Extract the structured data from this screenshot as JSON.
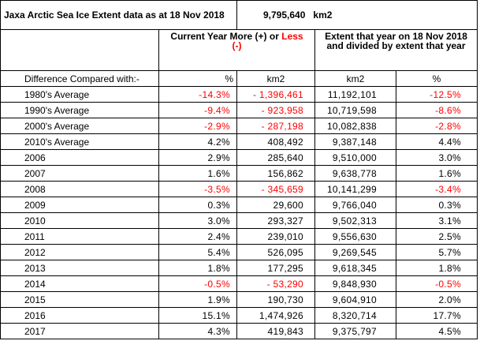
{
  "chart_data": {
    "type": "table",
    "title": "Jaxa Arctic Sea Ice Extent data as at 18 Nov 2018",
    "current_value": "9,795,640",
    "current_unit": "km2",
    "header": {
      "diff_prefix": "Current Year More (+) or ",
      "diff_less": "Less",
      "diff_paren": "(-)",
      "extent_heading": "Extent that year on 18 Nov 2018 and divided by extent that year",
      "row_label": "Difference Compared with:-",
      "col_pct": "%",
      "col_km2": "km2",
      "col_km2_b": "km2",
      "col_pct_b": "%"
    },
    "columns": [
      "Difference Compared with:-",
      "%",
      "km2",
      "km2",
      "%"
    ],
    "rows": [
      {
        "label": "1980's Average",
        "diff_pct": "-14.3%",
        "diff_km2": "- 1,396,461",
        "extent": "11,192,101",
        "ratio_pct": "-12.5%",
        "negative": true
      },
      {
        "label": "1990's Average",
        "diff_pct": "-9.4%",
        "diff_km2": "- 923,958",
        "extent": "10,719,598",
        "ratio_pct": "-8.6%",
        "negative": true
      },
      {
        "label": "2000's Average",
        "diff_pct": "-2.9%",
        "diff_km2": "- 287,198",
        "extent": "10,082,838",
        "ratio_pct": "-2.8%",
        "negative": true
      },
      {
        "label": "2010's Average",
        "diff_pct": "4.2%",
        "diff_km2": "408,492",
        "extent": "9,387,148",
        "ratio_pct": "4.4%",
        "negative": false
      },
      {
        "label": "2006",
        "diff_pct": "2.9%",
        "diff_km2": "285,640",
        "extent": "9,510,000",
        "ratio_pct": "3.0%",
        "negative": false
      },
      {
        "label": "2007",
        "diff_pct": "1.6%",
        "diff_km2": "156,862",
        "extent": "9,638,778",
        "ratio_pct": "1.6%",
        "negative": false
      },
      {
        "label": "2008",
        "diff_pct": "-3.5%",
        "diff_km2": "- 345,659",
        "extent": "10,141,299",
        "ratio_pct": "-3.4%",
        "negative": true
      },
      {
        "label": "2009",
        "diff_pct": "0.3%",
        "diff_km2": "29,600",
        "extent": "9,766,040",
        "ratio_pct": "0.3%",
        "negative": false
      },
      {
        "label": "2010",
        "diff_pct": "3.0%",
        "diff_km2": "293,327",
        "extent": "9,502,313",
        "ratio_pct": "3.1%",
        "negative": false
      },
      {
        "label": "2011",
        "diff_pct": "2.4%",
        "diff_km2": "239,010",
        "extent": "9,556,630",
        "ratio_pct": "2.5%",
        "negative": false
      },
      {
        "label": "2012",
        "diff_pct": "5.4%",
        "diff_km2": "526,095",
        "extent": "9,269,545",
        "ratio_pct": "5.7%",
        "negative": false
      },
      {
        "label": "2013",
        "diff_pct": "1.8%",
        "diff_km2": "177,295",
        "extent": "9,618,345",
        "ratio_pct": "1.8%",
        "negative": false
      },
      {
        "label": "2014",
        "diff_pct": "-0.5%",
        "diff_km2": "- 53,290",
        "extent": "9,848,930",
        "ratio_pct": "-0.5%",
        "negative": true
      },
      {
        "label": "2015",
        "diff_pct": "1.9%",
        "diff_km2": "190,730",
        "extent": "9,604,910",
        "ratio_pct": "2.0%",
        "negative": false
      },
      {
        "label": "2016",
        "diff_pct": "15.1%",
        "diff_km2": "1,474,926",
        "extent": "8,320,714",
        "ratio_pct": "17.7%",
        "negative": false
      },
      {
        "label": "2017",
        "diff_pct": "4.3%",
        "diff_km2": "419,843",
        "extent": "9,375,797",
        "ratio_pct": "4.5%",
        "negative": false
      }
    ],
    "colors": {
      "negative": "#ff0000",
      "text": "#000000",
      "border": "#000000"
    }
  }
}
